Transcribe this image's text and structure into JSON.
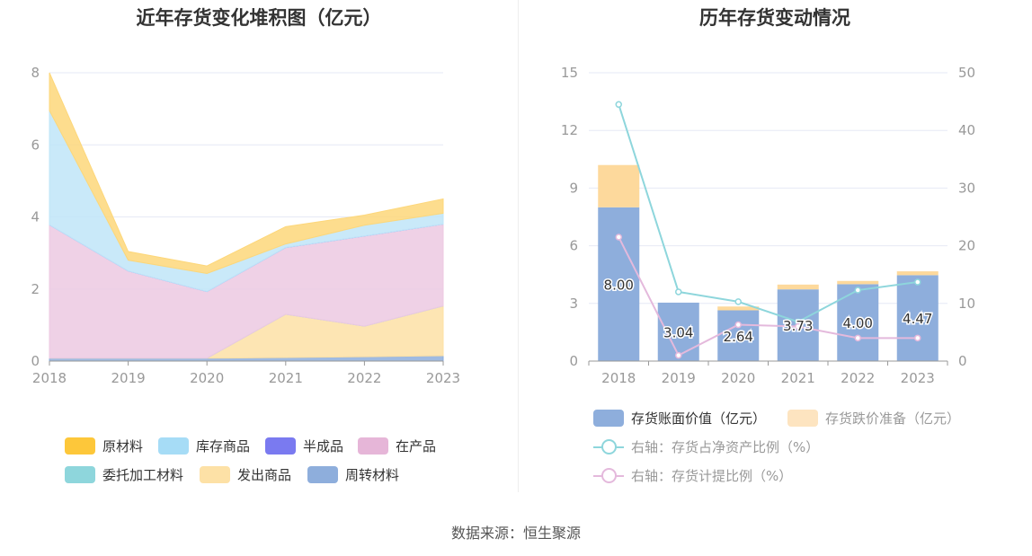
{
  "source_text": "数据来源：恒生聚源",
  "chart_data": [
    {
      "type": "area",
      "stacked": true,
      "title": "近年存货变化堆积图（亿元）",
      "x": [
        "2018",
        "2019",
        "2020",
        "2021",
        "2022",
        "2023"
      ],
      "ylim": [
        0,
        8
      ],
      "yticks": [
        "0",
        "2",
        "4",
        "6",
        "8"
      ],
      "grid": true,
      "legend_position": "bottom",
      "series": [
        {
          "name": "周转材料",
          "color": "#8eaedc",
          "values": [
            0.08,
            0.08,
            0.08,
            0.1,
            0.12,
            0.15
          ]
        },
        {
          "name": "发出商品",
          "color": "#fde1a6",
          "values": [
            0.0,
            0.0,
            0.0,
            1.2,
            0.85,
            1.38
          ]
        },
        {
          "name": "委托加工材料",
          "color": "#8ed6dc",
          "values": [
            0.0,
            0.0,
            0.0,
            0.0,
            0.0,
            0.0
          ]
        },
        {
          "name": "在产品",
          "color": "#ecc9e2",
          "values": [
            3.7,
            2.42,
            1.85,
            1.85,
            2.5,
            2.27
          ]
        },
        {
          "name": "半成品",
          "color": "#7a7af0",
          "values": [
            0.0,
            0.0,
            0.0,
            0.0,
            0.0,
            0.0
          ]
        },
        {
          "name": "库存商品",
          "color": "#bfe5f8",
          "values": [
            3.17,
            0.3,
            0.5,
            0.1,
            0.3,
            0.3
          ]
        },
        {
          "name": "原材料",
          "color": "#fdd77a",
          "values": [
            1.05,
            0.24,
            0.21,
            0.48,
            0.28,
            0.4
          ]
        }
      ],
      "legend_order": [
        "原材料",
        "库存商品",
        "半成品",
        "在产品",
        "委托加工材料",
        "发出商品",
        "周转材料"
      ]
    },
    {
      "type": "bar",
      "stacked": true,
      "title": "历年存货变动情况",
      "categories": [
        "2018",
        "2019",
        "2020",
        "2021",
        "2022",
        "2023"
      ],
      "ylim": [
        0,
        15
      ],
      "yticks": [
        "0",
        "3",
        "6",
        "9",
        "12",
        "15"
      ],
      "y2lim": [
        0,
        50
      ],
      "y2ticks": [
        "0",
        "10",
        "20",
        "30",
        "40",
        "50"
      ],
      "grid": true,
      "legend_position": "bottom",
      "series": [
        {
          "name": "存货账面价值（亿元）",
          "color": "#8eaedc",
          "values": [
            8.0,
            3.04,
            2.64,
            3.73,
            4.0,
            4.47
          ],
          "labels": [
            "8.00",
            "3.04",
            "2.64",
            "3.73",
            "4.00",
            "4.47"
          ]
        },
        {
          "name": "存货跌价准备（亿元）",
          "color": "#fdd99c",
          "values": [
            2.2,
            0.0,
            0.2,
            0.25,
            0.17,
            0.2
          ]
        }
      ],
      "lines": [
        {
          "name": "右轴：存货占净资产比例（%）",
          "color": "#8ed6dc",
          "axis": "right",
          "values": [
            44.5,
            12.0,
            10.3,
            6.8,
            12.3,
            13.7
          ]
        },
        {
          "name": "右轴：存货计提比例（%）",
          "color": "#e4b9dc",
          "axis": "right",
          "values": [
            21.5,
            1.0,
            6.3,
            6.0,
            4.0,
            4.0
          ]
        }
      ]
    }
  ]
}
